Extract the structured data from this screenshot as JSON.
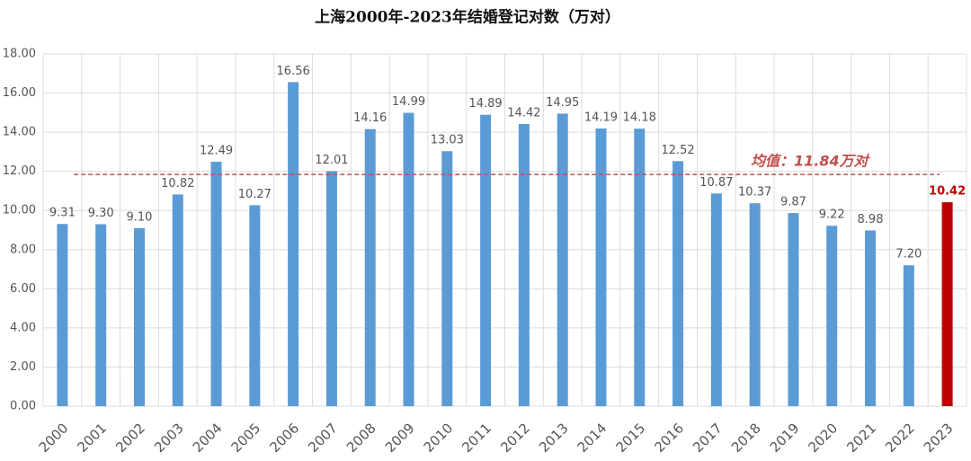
{
  "chart_data": {
    "type": "bar",
    "title": "上海2000年-2023年结婚登记对数（万对）",
    "categories": [
      "2000",
      "2001",
      "2002",
      "2003",
      "2004",
      "2005",
      "2006",
      "2007",
      "2008",
      "2009",
      "2010",
      "2011",
      "2012",
      "2013",
      "2014",
      "2015",
      "2016",
      "2017",
      "2018",
      "2019",
      "2020",
      "2021",
      "2022",
      "2023"
    ],
    "values": [
      9.31,
      9.3,
      9.1,
      10.82,
      12.49,
      10.27,
      16.56,
      12.01,
      14.16,
      14.99,
      13.03,
      14.89,
      14.42,
      14.95,
      14.19,
      14.18,
      12.52,
      10.87,
      10.37,
      9.87,
      9.22,
      8.98,
      7.2,
      10.42
    ],
    "value_labels": [
      "9.31",
      "9.30",
      "9.10",
      "10.82",
      "12.49",
      "10.27",
      "16.56",
      "12.01",
      "14.16",
      "14.99",
      "13.03",
      "14.89",
      "14.42",
      "14.95",
      "14.19",
      "14.18",
      "12.52",
      "10.87",
      "10.37",
      "9.87",
      "9.22",
      "8.98",
      "7.20",
      "10.42"
    ],
    "colors": [
      "#5b9bd5",
      "#5b9bd5",
      "#5b9bd5",
      "#5b9bd5",
      "#5b9bd5",
      "#5b9bd5",
      "#5b9bd5",
      "#5b9bd5",
      "#5b9bd5",
      "#5b9bd5",
      "#5b9bd5",
      "#5b9bd5",
      "#5b9bd5",
      "#5b9bd5",
      "#5b9bd5",
      "#5b9bd5",
      "#5b9bd5",
      "#5b9bd5",
      "#5b9bd5",
      "#5b9bd5",
      "#5b9bd5",
      "#5b9bd5",
      "#5b9bd5",
      "#c00000"
    ],
    "ylim": [
      0,
      18
    ],
    "yticks": [
      {
        "value": 0,
        "label": "0.00"
      },
      {
        "value": 2,
        "label": "2.00"
      },
      {
        "value": 4,
        "label": "4.00"
      },
      {
        "value": 6,
        "label": "6.00"
      },
      {
        "value": 8,
        "label": "8.00"
      },
      {
        "value": 10,
        "label": "10.00"
      },
      {
        "value": 12,
        "label": "12.00"
      },
      {
        "value": 14,
        "label": "14.00"
      },
      {
        "value": 16,
        "label": "16.00"
      },
      {
        "value": 18,
        "label": "18.00"
      }
    ],
    "grid": true,
    "mean_line": {
      "value": 11.84,
      "label": "均值：11.84万对",
      "color": "#c0504d"
    }
  }
}
